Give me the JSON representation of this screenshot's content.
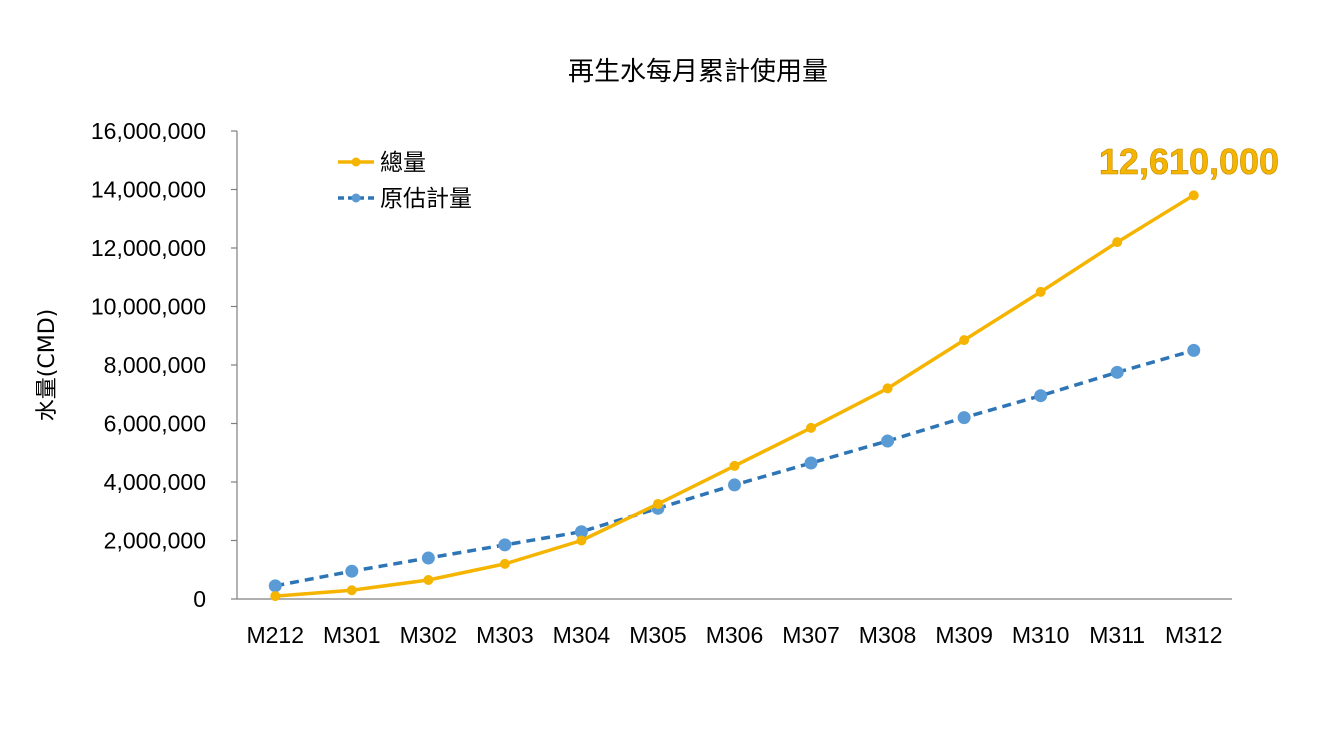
{
  "chart_data": {
    "type": "line",
    "title": "再生水每月累計使用量",
    "ylabel": "水量(CMD)",
    "xlabel": "",
    "categories": [
      "M212",
      "M301",
      "M302",
      "M303",
      "M304",
      "M305",
      "M306",
      "M307",
      "M308",
      "M309",
      "M310",
      "M311",
      "M312"
    ],
    "ylim": [
      0,
      16000000
    ],
    "yticks": [
      "0",
      "2,000,000",
      "4,000,000",
      "6,000,000",
      "8,000,000",
      "10,000,000",
      "12,000,000",
      "14,000,000",
      "16,000,000"
    ],
    "series": [
      {
        "name": "總量",
        "color": "#F5B400",
        "style": "solid",
        "values": [
          100000,
          300000,
          650000,
          1200000,
          2000000,
          3250000,
          4550000,
          5850000,
          7200000,
          8850000,
          10500000,
          12200000,
          13800000
        ]
      },
      {
        "name": "原估計量",
        "color": "#2E75B6",
        "marker_color": "#5B9BD5",
        "style": "dashed",
        "values": [
          450000,
          950000,
          1400000,
          1850000,
          2300000,
          3100000,
          3900000,
          4650000,
          5400000,
          6200000,
          6950000,
          7750000,
          8500000
        ]
      }
    ],
    "legend_position": "top-left",
    "grid": false,
    "annotation": {
      "text": "12,610,000",
      "color": "#F5B400"
    }
  }
}
